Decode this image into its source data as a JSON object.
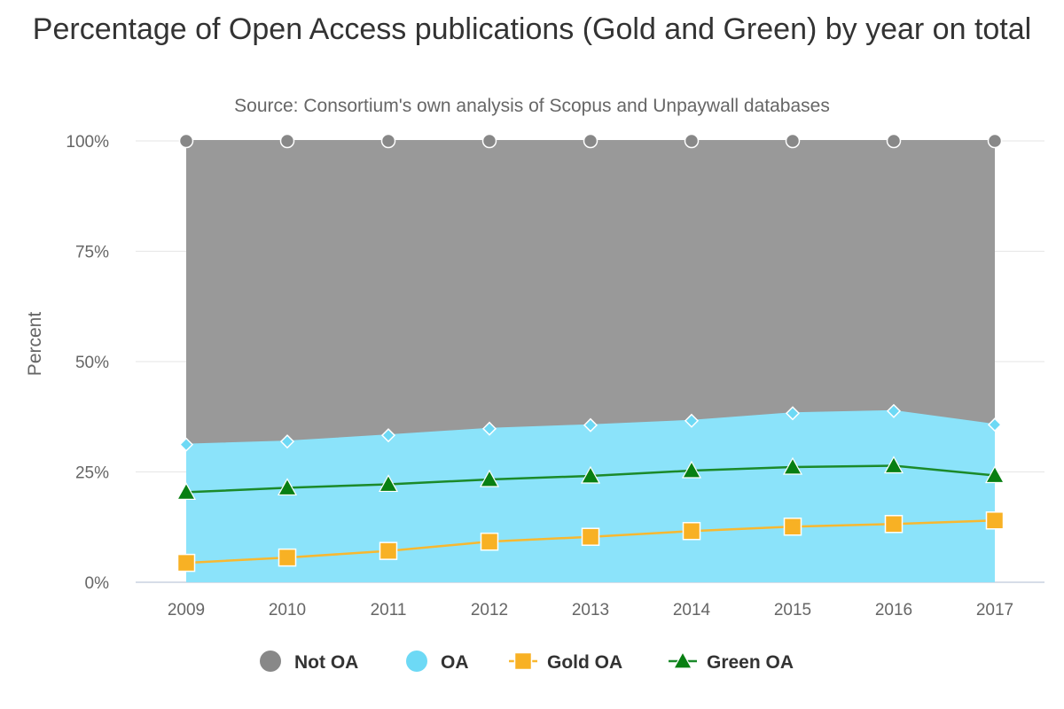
{
  "chart_data": {
    "type": "area",
    "title": "Percentage of Open Access publications (Gold and Green) by year on total",
    "subtitle": "Source: Consortium's own analysis of Scopus and Unpaywall databases",
    "ylabel": "Percent",
    "xlabel": "",
    "ylim": [
      0,
      100
    ],
    "grid": true,
    "legend_position": "bottom",
    "categories": [
      "2009",
      "2010",
      "2011",
      "2012",
      "2013",
      "2014",
      "2015",
      "2016",
      "2017"
    ],
    "y_ticks": [
      {
        "value": 0,
        "label": "0%"
      },
      {
        "value": 25,
        "label": "25%"
      },
      {
        "value": 50,
        "label": "50%"
      },
      {
        "value": 75,
        "label": "75%"
      },
      {
        "value": 100,
        "label": "100%"
      }
    ],
    "series": [
      {
        "name": "Not OA",
        "kind": "area",
        "marker": "circle",
        "color": "#999999",
        "marker_color": "#888888",
        "values": [
          100,
          100,
          100,
          100,
          100,
          100,
          100,
          100,
          100
        ]
      },
      {
        "name": "OA",
        "kind": "area",
        "marker": "diamond",
        "color": "#8be3fa",
        "marker_color": "#6dd9f5",
        "values": [
          31.2,
          31.9,
          33.3,
          34.8,
          35.6,
          36.6,
          38.3,
          38.8,
          35.7
        ]
      },
      {
        "name": "Gold OA",
        "kind": "line",
        "marker": "square",
        "color": "#f8b830",
        "marker_color": "#f8b124",
        "values": [
          4.4,
          5.6,
          7.1,
          9.2,
          10.3,
          11.6,
          12.6,
          13.2,
          14.0
        ]
      },
      {
        "name": "Green OA",
        "kind": "line",
        "marker": "triangle",
        "color": "#1b8a2a",
        "marker_color": "#087f12",
        "values": [
          20.4,
          21.4,
          22.2,
          23.3,
          24.1,
          25.3,
          26.1,
          26.4,
          24.2
        ]
      }
    ]
  }
}
